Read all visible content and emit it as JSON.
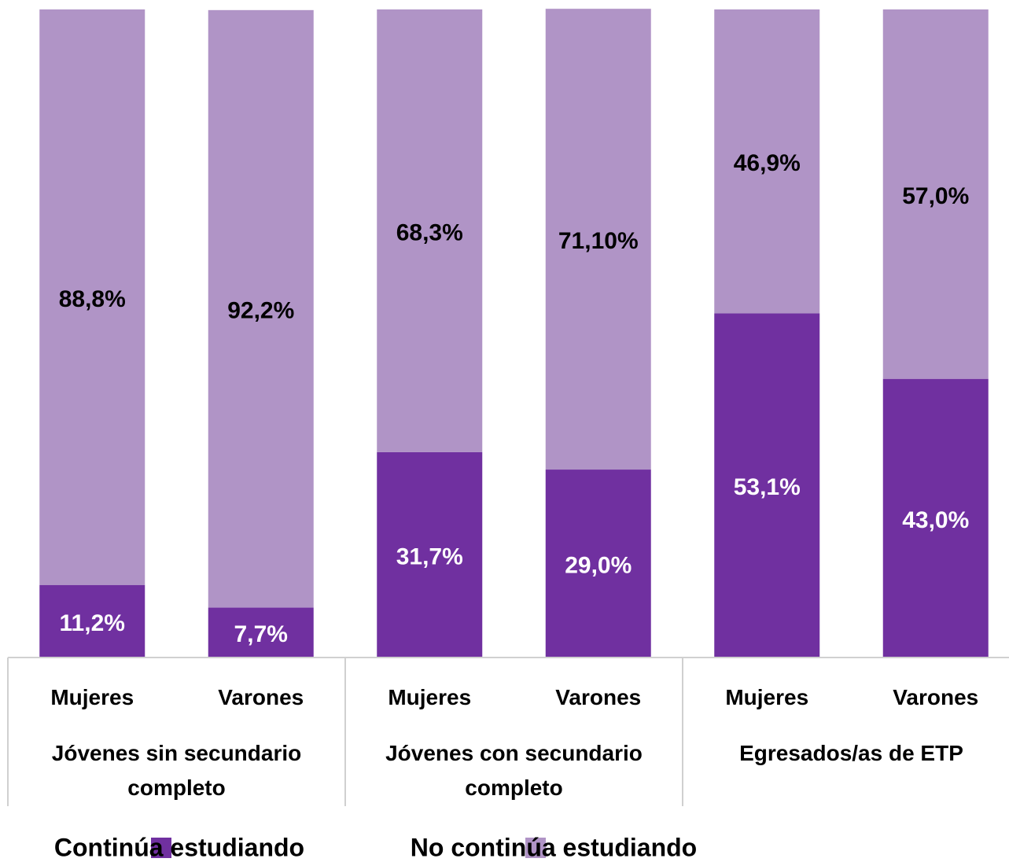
{
  "chart_data": {
    "type": "stacked_bar",
    "categories": [
      "Mujeres",
      "Varones",
      "Mujeres",
      "Varones",
      "Mujeres",
      "Varones"
    ],
    "groups": [
      "Jóvenes sin secundario completo",
      "Jóvenes con secundario completo",
      "Egresados/as de ETP"
    ],
    "series": [
      {
        "name": "Continúa estudiando",
        "color": "#7030a0",
        "values": [
          11.2,
          7.7,
          31.7,
          29.0,
          53.1,
          43.0
        ],
        "value_labels": [
          "11,2%",
          "7,7%",
          "31,7%",
          "29,0%",
          "53,1%",
          "43,0%"
        ]
      },
      {
        "name": "No continúa estudiando",
        "color": "#b094c6",
        "values": [
          88.8,
          92.2,
          68.3,
          71.1,
          46.9,
          57.0
        ],
        "value_labels": [
          "88,8%",
          "92,2%",
          "68,3%",
          "71,10%",
          "46,9%",
          "57,0%"
        ]
      }
    ],
    "ylim": [
      0,
      100
    ],
    "legend": "bottom"
  }
}
